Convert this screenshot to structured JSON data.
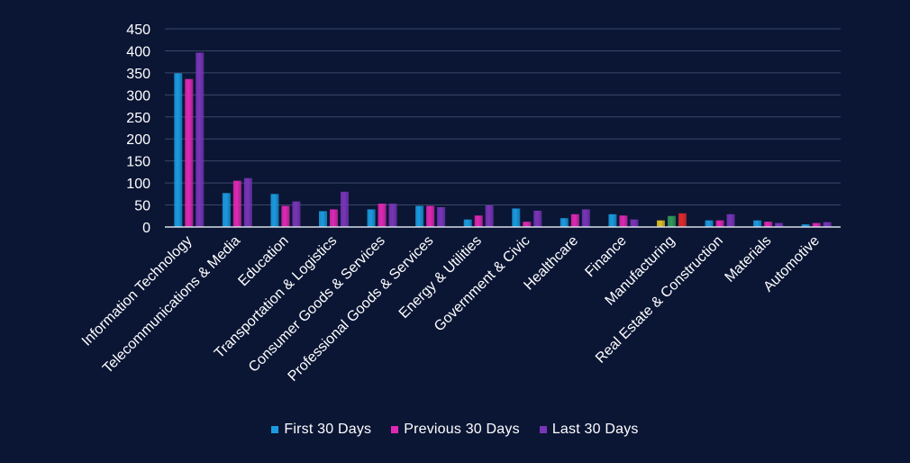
{
  "chart_data": {
    "type": "bar",
    "title": "",
    "xlabel": "",
    "ylabel": "",
    "ylim": [
      0,
      450
    ],
    "yticks": [
      0,
      50,
      100,
      150,
      200,
      250,
      300,
      350,
      400,
      450
    ],
    "grid": true,
    "legend_position": "bottom",
    "categories": [
      "Information Technology",
      "Telecommunications & Media",
      "Education",
      "Transportation & Logistics",
      "Consumer Goods & Services",
      "Professional Goods & Services",
      "Energy & Utilities",
      "Government & Civic",
      "Healthcare",
      "Finance",
      "Manufacturing",
      "Real Estate & Construction",
      "Materials",
      "Automotive"
    ],
    "series": [
      {
        "name": "First 30 Days",
        "color": "#1a9be0",
        "values": [
          349,
          77,
          75,
          36,
          40,
          48,
          17,
          42,
          20,
          29,
          15,
          15,
          15,
          6
        ]
      },
      {
        "name": "Previous 30 Days",
        "color": "#e028b4",
        "values": [
          336,
          105,
          48,
          40,
          53,
          48,
          26,
          12,
          29,
          26,
          25,
          15,
          12,
          9
        ]
      },
      {
        "name": "Last 30 Days",
        "color": "#7a35b8",
        "values": [
          396,
          111,
          58,
          80,
          53,
          45,
          49,
          37,
          40,
          17,
          31,
          29,
          9,
          11
        ]
      }
    ],
    "highlight_overrides": [
      {
        "category": "Manufacturing",
        "colors": [
          "#e0c020",
          "#2f9a58",
          "#e02a2a"
        ]
      }
    ]
  },
  "colors": {
    "background": "#0b1635",
    "grid": "#3a4766",
    "axis": "#d8dde8",
    "text": "#ffffff"
  }
}
